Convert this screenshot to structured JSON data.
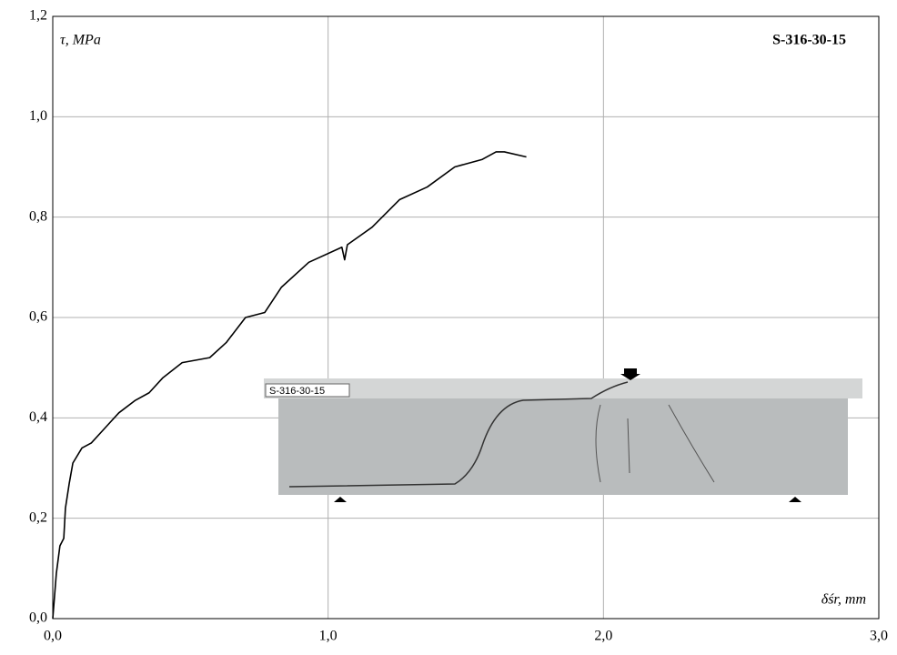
{
  "chart_data": {
    "type": "line",
    "title": "S-316-30-15",
    "x_label": "δśr, mm",
    "y_label": "τ, MPa",
    "inset_label": "S-316-30-15",
    "xlim": [
      0,
      3
    ],
    "ylim": [
      0,
      1.2
    ],
    "xticks": [
      {
        "value": 0,
        "label": "0,0"
      },
      {
        "value": 1,
        "label": "1,0"
      },
      {
        "value": 2,
        "label": "2,0"
      },
      {
        "value": 3,
        "label": "3,0"
      }
    ],
    "yticks": [
      {
        "value": 0,
        "label": "0,0"
      },
      {
        "value": 0.2,
        "label": "0,2"
      },
      {
        "value": 0.4,
        "label": "0,4"
      },
      {
        "value": 0.6,
        "label": "0,6"
      },
      {
        "value": 0.8,
        "label": "0,8"
      },
      {
        "value": 1.0,
        "label": "1,0"
      },
      {
        "value": 1.2,
        "label": "1,2"
      }
    ],
    "grid": true,
    "series": [
      {
        "color": "#000000",
        "x": [
          0,
          0.013,
          0.026,
          0.04,
          0.046,
          0.06,
          0.073,
          0.106,
          0.14,
          0.19,
          0.24,
          0.3,
          0.35,
          0.4,
          0.47,
          0.57,
          0.63,
          0.7,
          0.77,
          0.83,
          0.93,
          1.05,
          1.06,
          1.07,
          1.16,
          1.26,
          1.36,
          1.46,
          1.56,
          1.61,
          1.64,
          1.72
        ],
        "values": [
          0,
          0.09,
          0.145,
          0.16,
          0.22,
          0.27,
          0.31,
          0.34,
          0.35,
          0.38,
          0.41,
          0.435,
          0.45,
          0.48,
          0.51,
          0.52,
          0.55,
          0.6,
          0.61,
          0.66,
          0.71,
          0.74,
          0.715,
          0.745,
          0.78,
          0.835,
          0.86,
          0.9,
          0.915,
          0.93,
          0.93,
          0.92
        ]
      }
    ]
  }
}
